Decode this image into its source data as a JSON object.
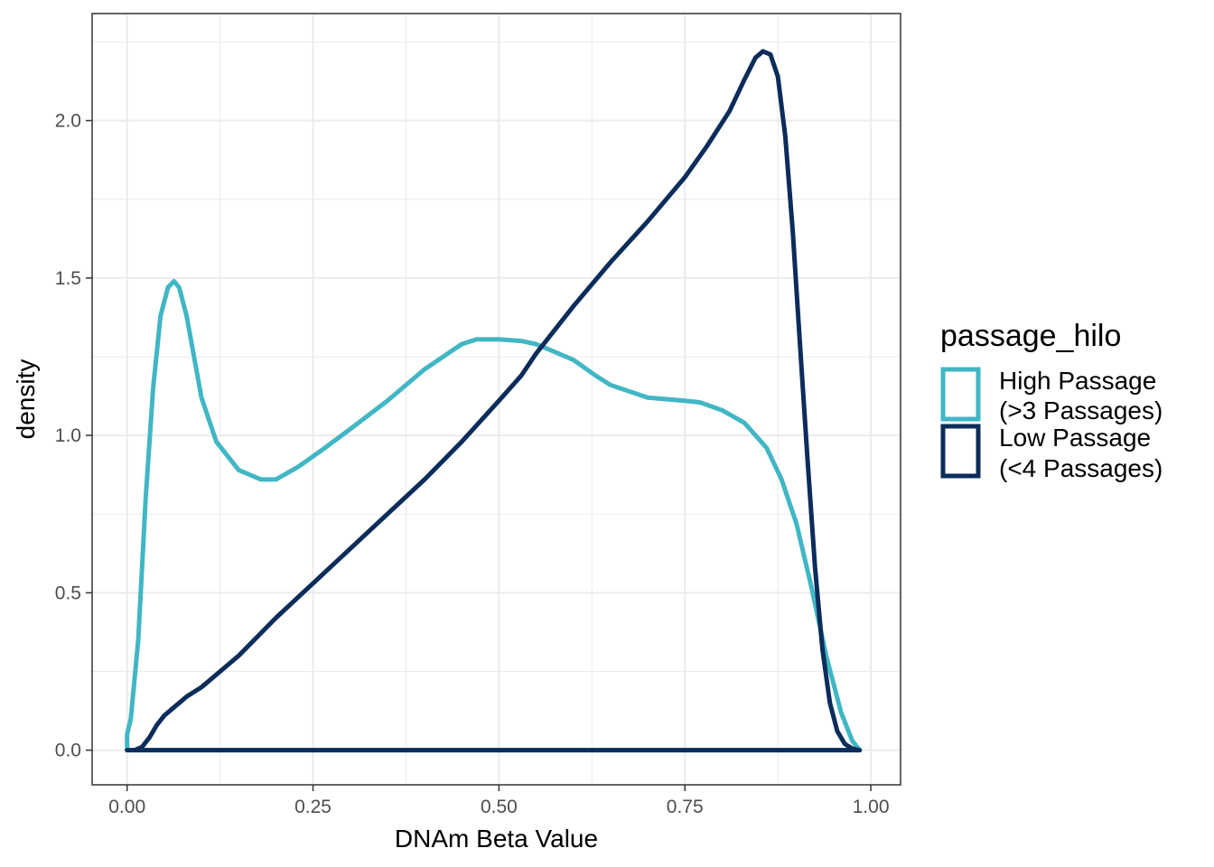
{
  "chart_data": {
    "type": "line",
    "subtype": "density",
    "title": "",
    "xlabel": "DNAm Beta Value",
    "ylabel": "density",
    "xlim": [
      -0.047,
      1.04
    ],
    "ylim": [
      -0.11,
      2.34
    ],
    "x_ticks": [
      0,
      0.25,
      0.5,
      0.75,
      1.0
    ],
    "x_tick_labels": [
      "0.00",
      "0.25",
      "0.50",
      "0.75",
      "1.00"
    ],
    "y_ticks": [
      0,
      0.5,
      1.0,
      1.5,
      2.0
    ],
    "y_tick_labels": [
      "0.0",
      "0.5",
      "1.0",
      "1.5",
      "2.0"
    ],
    "grid": true,
    "legend": {
      "title": "passage_hilo",
      "position": "right",
      "entries": [
        {
          "line1": "High Passage",
          "line2": "(>3 Passages)"
        },
        {
          "line1": "Low Passage",
          "line2": "(<4 Passages)"
        }
      ]
    },
    "series": [
      {
        "name": "High Passage (>3 Passages)",
        "color": "#41B6C4",
        "x": [
          0.0,
          0.0,
          0.005,
          0.015,
          0.025,
          0.035,
          0.045,
          0.055,
          0.063,
          0.07,
          0.08,
          0.09,
          0.1,
          0.12,
          0.15,
          0.18,
          0.2,
          0.23,
          0.26,
          0.3,
          0.35,
          0.4,
          0.45,
          0.47,
          0.5,
          0.53,
          0.55,
          0.58,
          0.6,
          0.63,
          0.65,
          0.7,
          0.75,
          0.77,
          0.8,
          0.83,
          0.86,
          0.88,
          0.9,
          0.92,
          0.94,
          0.96,
          0.975,
          0.985
        ],
        "y": [
          0.0,
          0.05,
          0.1,
          0.35,
          0.8,
          1.15,
          1.38,
          1.47,
          1.49,
          1.47,
          1.38,
          1.25,
          1.12,
          0.98,
          0.89,
          0.86,
          0.86,
          0.9,
          0.95,
          1.02,
          1.11,
          1.21,
          1.29,
          1.305,
          1.305,
          1.3,
          1.29,
          1.26,
          1.24,
          1.19,
          1.16,
          1.12,
          1.11,
          1.105,
          1.08,
          1.04,
          0.96,
          0.86,
          0.72,
          0.52,
          0.3,
          0.12,
          0.03,
          0.0
        ]
      },
      {
        "name": "Low Passage (<4 Passages)",
        "color": "#0C2C5A",
        "x": [
          0.0,
          0.01,
          0.02,
          0.03,
          0.04,
          0.05,
          0.06,
          0.08,
          0.1,
          0.15,
          0.2,
          0.25,
          0.3,
          0.35,
          0.4,
          0.45,
          0.5,
          0.53,
          0.55,
          0.6,
          0.65,
          0.7,
          0.75,
          0.78,
          0.81,
          0.83,
          0.845,
          0.855,
          0.865,
          0.875,
          0.885,
          0.895,
          0.905,
          0.915,
          0.925,
          0.935,
          0.945,
          0.955,
          0.965,
          0.975,
          0.985
        ],
        "y": [
          0.0,
          0.0,
          0.01,
          0.04,
          0.08,
          0.11,
          0.13,
          0.17,
          0.2,
          0.3,
          0.42,
          0.53,
          0.64,
          0.75,
          0.86,
          0.98,
          1.11,
          1.19,
          1.26,
          1.41,
          1.55,
          1.68,
          1.82,
          1.92,
          2.03,
          2.13,
          2.2,
          2.22,
          2.21,
          2.14,
          1.95,
          1.65,
          1.28,
          0.92,
          0.58,
          0.32,
          0.15,
          0.06,
          0.02,
          0.005,
          0.0
        ]
      }
    ]
  }
}
